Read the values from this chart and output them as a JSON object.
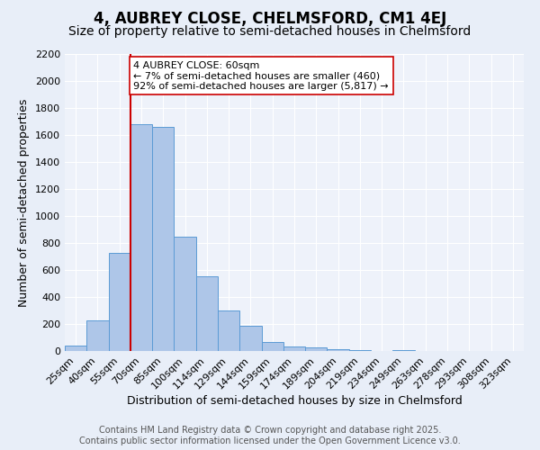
{
  "title": "4, AUBREY CLOSE, CHELMSFORD, CM1 4EJ",
  "subtitle": "Size of property relative to semi-detached houses in Chelmsford",
  "xlabel": "Distribution of semi-detached houses by size in Chelmsford",
  "ylabel": "Number of semi-detached properties",
  "categories": [
    "25sqm",
    "40sqm",
    "55sqm",
    "70sqm",
    "85sqm",
    "100sqm",
    "114sqm",
    "129sqm",
    "144sqm",
    "159sqm",
    "174sqm",
    "189sqm",
    "204sqm",
    "219sqm",
    "234sqm",
    "249sqm",
    "263sqm",
    "278sqm",
    "293sqm",
    "308sqm",
    "323sqm"
  ],
  "values": [
    40,
    225,
    730,
    1680,
    1660,
    845,
    555,
    300,
    185,
    65,
    35,
    25,
    15,
    10,
    0,
    10,
    0,
    0,
    0,
    0,
    0
  ],
  "bar_color": "#aec6e8",
  "bar_edge_color": "#5b9bd5",
  "vline_color": "#cc0000",
  "vline_pos": 2.5,
  "annotation_text": "4 AUBREY CLOSE: 60sqm\n← 7% of semi-detached houses are smaller (460)\n92% of semi-detached houses are larger (5,817) →",
  "annotation_box_color": "#ffffff",
  "annotation_box_edge": "#cc0000",
  "ylim": [
    0,
    2200
  ],
  "yticks": [
    0,
    200,
    400,
    600,
    800,
    1000,
    1200,
    1400,
    1600,
    1800,
    2000,
    2200
  ],
  "footer_line1": "Contains HM Land Registry data © Crown copyright and database right 2025.",
  "footer_line2": "Contains public sector information licensed under the Open Government Licence v3.0.",
  "background_color": "#e8eef8",
  "plot_bg_color": "#eef2fa",
  "title_fontsize": 12,
  "subtitle_fontsize": 10,
  "axis_label_fontsize": 9,
  "tick_fontsize": 8,
  "footer_fontsize": 7,
  "ann_fontsize": 8
}
